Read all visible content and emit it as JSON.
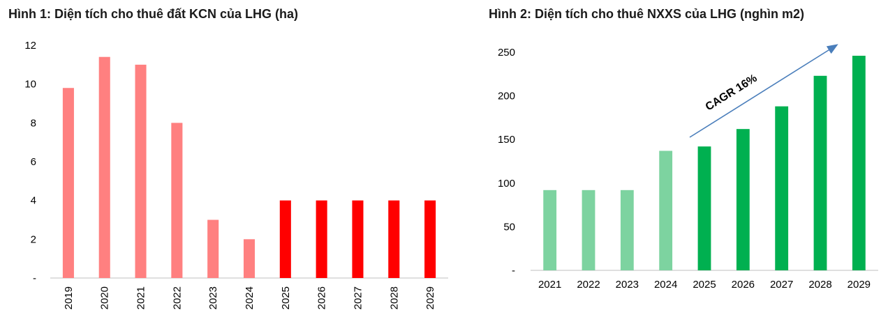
{
  "chart_data": [
    {
      "type": "bar",
      "title": "Hình 1: Diện tích cho thuê đất KCN của LHG (ha)",
      "xlabel": "",
      "ylabel": "",
      "categories": [
        "2019",
        "2020",
        "2021",
        "2022",
        "2023",
        "2024",
        "2025",
        "2026",
        "2027",
        "2028",
        "2029"
      ],
      "values": [
        9.8,
        11.4,
        11.0,
        8.0,
        3.0,
        2.0,
        4.0,
        4.0,
        4.0,
        4.0,
        4.0
      ],
      "bar_colors": [
        "#FF8080",
        "#FF8080",
        "#FF8080",
        "#FF8080",
        "#FF8080",
        "#FF8080",
        "#FF0000",
        "#FF0000",
        "#FF0000",
        "#FF0000",
        "#FF0000"
      ],
      "ylim": [
        0,
        12
      ],
      "yticks": [
        "-",
        "2",
        "4",
        "6",
        "8",
        "10",
        "12"
      ],
      "x_tick_rotation": "vertical",
      "grid": false,
      "legend": "none"
    },
    {
      "type": "bar",
      "title": "Hình 2: Diện tích cho thuê NXXS của LHG (nghìn m2)",
      "xlabel": "",
      "ylabel": "",
      "categories": [
        "2021",
        "2022",
        "2023",
        "2024",
        "2025",
        "2026",
        "2027",
        "2028",
        "2029"
      ],
      "values": [
        92,
        92,
        92,
        137,
        142,
        162,
        188,
        223,
        246
      ],
      "bar_colors": [
        "#7DD3A0",
        "#7DD3A0",
        "#7DD3A0",
        "#7DD3A0",
        "#00B050",
        "#00B050",
        "#00B050",
        "#00B050",
        "#00B050"
      ],
      "ylim": [
        0,
        250
      ],
      "yticks": [
        "-",
        "50",
        "100",
        "150",
        "200",
        "250"
      ],
      "annotation": "CAGR 16%",
      "annotation_arrow_color": "#4A7EBB",
      "grid": false,
      "legend": "none"
    }
  ]
}
